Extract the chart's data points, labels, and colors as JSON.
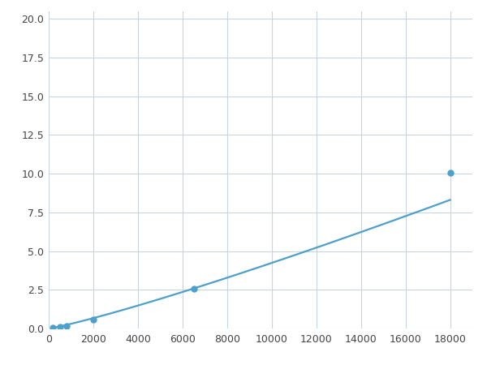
{
  "x_data": [
    200,
    500,
    800,
    2000,
    6500,
    18000
  ],
  "y_data": [
    0.07,
    0.12,
    0.17,
    0.6,
    2.55,
    10.05
  ],
  "line_color": "#4d9fcc",
  "marker_color": "#4d9fcc",
  "marker_size": 5,
  "xlim": [
    0,
    19000
  ],
  "ylim": [
    0,
    20.5
  ],
  "xticks": [
    0,
    2000,
    4000,
    6000,
    8000,
    10000,
    12000,
    14000,
    16000,
    18000
  ],
  "yticks": [
    0.0,
    2.5,
    5.0,
    7.5,
    10.0,
    12.5,
    15.0,
    17.5,
    20.0
  ],
  "grid_color": "#c8d4e0",
  "background_color": "#ffffff",
  "line_width": 1.6,
  "figsize": [
    6.0,
    4.5
  ],
  "dpi": 100
}
